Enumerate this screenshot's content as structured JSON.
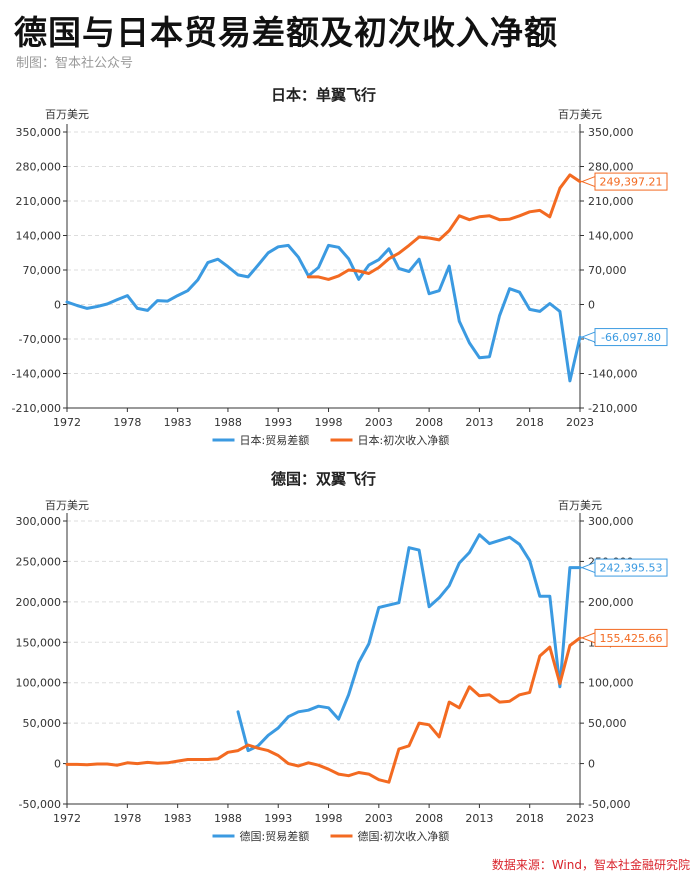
{
  "header": {
    "title": "德国与日本贸易差额及初次收入净额",
    "subtitle": "制图：智本社公众号"
  },
  "footer": {
    "source": "数据来源：Wind，智本社金融研究院"
  },
  "colors": {
    "trade": "#3b9ae1",
    "income": "#f36a21",
    "grid": "#dddddd",
    "axis": "#333333"
  },
  "chart_data": [
    {
      "type": "line",
      "title": "日本：单翼飞行",
      "ylabel_left": "百万美元",
      "ylabel_right": "百万美元",
      "ylim": [
        -210000,
        350000
      ],
      "yticks": [
        -210000,
        -140000,
        -70000,
        0,
        70000,
        140000,
        210000,
        280000,
        350000
      ],
      "ytick_labels": [
        "-210,000",
        "-140,000",
        "-70,000",
        "0",
        "70,000",
        "140,000",
        "210,000",
        "280,000",
        "350,000"
      ],
      "xlim": [
        1972,
        2023
      ],
      "xticks": [
        1972,
        1978,
        1983,
        1988,
        1993,
        1998,
        2003,
        2008,
        2013,
        2018,
        2023
      ],
      "xtick_labels": [
        "1972",
        "1978",
        "1983",
        "1988",
        "1993",
        "1998",
        "2003",
        "2008",
        "2013",
        "2018",
        "2023"
      ],
      "grid": true,
      "legend_position": "bottom-center",
      "series": [
        {
          "name": "日本:贸易差额",
          "color_key": "trade",
          "x": [
            1972,
            1973,
            1974,
            1975,
            1976,
            1977,
            1978,
            1979,
            1980,
            1981,
            1982,
            1983,
            1984,
            1985,
            1986,
            1987,
            1988,
            1989,
            1990,
            1991,
            1992,
            1993,
            1994,
            1995,
            1996,
            1997,
            1998,
            1999,
            2000,
            2001,
            2002,
            2003,
            2004,
            2005,
            2006,
            2007,
            2008,
            2009,
            2010,
            2011,
            2012,
            2013,
            2014,
            2015,
            2016,
            2017,
            2018,
            2019,
            2020,
            2021,
            2022,
            2023
          ],
          "values": [
            5000,
            -2000,
            -8000,
            -4000,
            1000,
            10000,
            18000,
            -8000,
            -12000,
            8000,
            7000,
            18000,
            28000,
            50000,
            85000,
            92000,
            77000,
            60000,
            56000,
            80000,
            105000,
            117000,
            120000,
            96000,
            58000,
            75000,
            120000,
            116000,
            93000,
            51000,
            80000,
            91000,
            113000,
            73000,
            67000,
            92000,
            22000,
            28000,
            78000,
            -34000,
            -78000,
            -108000,
            -106000,
            -23000,
            32000,
            25000,
            -10000,
            -14000,
            2000,
            -14000,
            -155000,
            -66097.8
          ]
        },
        {
          "name": "日本:初次收入净额",
          "color_key": "income",
          "x": [
            1996,
            1997,
            1998,
            1999,
            2000,
            2001,
            2002,
            2003,
            2004,
            2005,
            2006,
            2007,
            2008,
            2009,
            2010,
            2011,
            2012,
            2013,
            2014,
            2015,
            2016,
            2017,
            2018,
            2019,
            2020,
            2021,
            2022,
            2023
          ],
          "values": [
            56000,
            56000,
            51000,
            58000,
            70000,
            68000,
            63000,
            75000,
            93000,
            104000,
            120000,
            137000,
            135000,
            131000,
            150000,
            180000,
            172000,
            178000,
            180000,
            172000,
            173000,
            180000,
            188000,
            191000,
            178000,
            236000,
            263000,
            249397.21
          ]
        }
      ],
      "end_labels": [
        "-66,097.80",
        "249,397.21"
      ]
    },
    {
      "type": "line",
      "title": "德国：双翼飞行",
      "ylabel_left": "百万美元",
      "ylabel_right": "百万美元",
      "ylim": [
        -50000,
        300000
      ],
      "yticks": [
        -50000,
        0,
        50000,
        100000,
        150000,
        200000,
        250000,
        300000
      ],
      "ytick_labels": [
        "-50,000",
        "0",
        "50,000",
        "100,000",
        "150,000",
        "200,000",
        "250,000",
        "300,000"
      ],
      "xlim": [
        1972,
        2023
      ],
      "xticks": [
        1972,
        1978,
        1983,
        1988,
        1993,
        1998,
        2003,
        2008,
        2013,
        2018,
        2023
      ],
      "xtick_labels": [
        "1972",
        "1978",
        "1983",
        "1988",
        "1993",
        "1998",
        "2003",
        "2008",
        "2013",
        "2018",
        "2023"
      ],
      "grid": true,
      "legend_position": "bottom-center",
      "series": [
        {
          "name": "德国:贸易差额",
          "color_key": "trade",
          "x": [
            1989,
            1990,
            1991,
            1992,
            1993,
            1994,
            1995,
            1996,
            1997,
            1998,
            1999,
            2000,
            2001,
            2002,
            2003,
            2004,
            2005,
            2006,
            2007,
            2008,
            2009,
            2010,
            2011,
            2012,
            2013,
            2014,
            2015,
            2016,
            2017,
            2018,
            2019,
            2020,
            2021,
            2022,
            2023
          ],
          "values": [
            64000,
            16000,
            22000,
            35000,
            44000,
            58000,
            64000,
            66000,
            71000,
            69000,
            55000,
            85000,
            125000,
            148000,
            193000,
            196000,
            199000,
            267000,
            264000,
            194000,
            205000,
            220000,
            248000,
            261000,
            283000,
            272000,
            276000,
            280000,
            271000,
            251000,
            207000,
            207000,
            95000,
            242395.53,
            242395.53
          ]
        },
        {
          "name": "德国:初次收入净额",
          "color_key": "income",
          "x": [
            1972,
            1973,
            1974,
            1975,
            1976,
            1977,
            1978,
            1979,
            1980,
            1981,
            1982,
            1983,
            1984,
            1985,
            1986,
            1987,
            1988,
            1989,
            1990,
            1991,
            1992,
            1993,
            1994,
            1995,
            1996,
            1997,
            1998,
            1999,
            2000,
            2001,
            2002,
            2003,
            2004,
            2005,
            2006,
            2007,
            2008,
            2009,
            2010,
            2011,
            2012,
            2013,
            2014,
            2015,
            2016,
            2017,
            2018,
            2019,
            2020,
            2021,
            2022,
            2023
          ],
          "values": [
            -1000,
            -1000,
            -1500,
            -500,
            -500,
            -2000,
            1000,
            0,
            1500,
            500,
            1000,
            3000,
            5000,
            5000,
            5000,
            6000,
            14000,
            16000,
            23000,
            19000,
            16000,
            10000,
            0,
            -3000,
            1000,
            -2000,
            -7000,
            -13000,
            -15000,
            -11000,
            -13000,
            -20000,
            -23000,
            18000,
            22000,
            50000,
            48000,
            33000,
            76000,
            69000,
            95000,
            84000,
            85000,
            76000,
            77000,
            85000,
            88000,
            133000,
            144000,
            99000,
            146000,
            155425.66
          ]
        }
      ],
      "end_labels": [
        "242,395.53",
        "155,425.66"
      ]
    }
  ]
}
